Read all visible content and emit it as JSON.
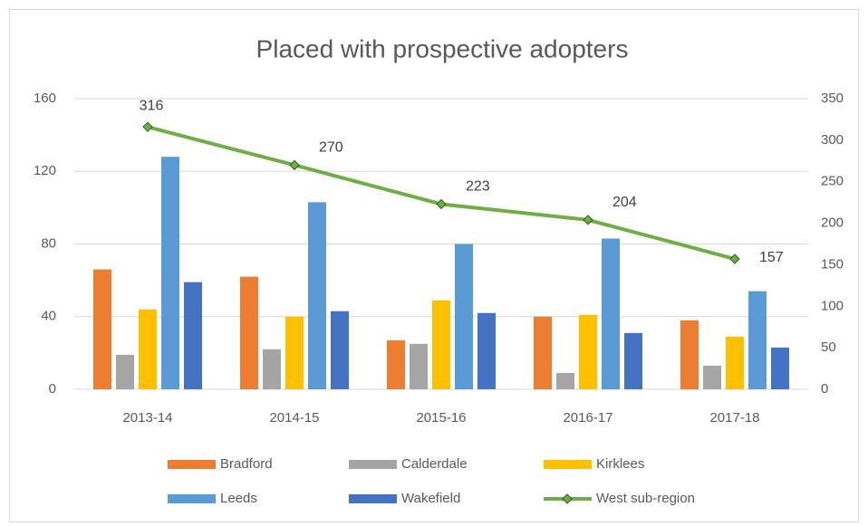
{
  "chart_data": {
    "type": "bar",
    "title": "Placed with prospective adopters",
    "categories": [
      "2013-14",
      "2014-15",
      "2015-16",
      "2016-17",
      "2017-18"
    ],
    "series": [
      {
        "name": "Bradford",
        "color": "#ed7d31",
        "values": [
          66,
          62,
          27,
          40,
          38
        ]
      },
      {
        "name": "Calderdale",
        "color": "#a5a5a5",
        "values": [
          19,
          22,
          25,
          9,
          13
        ]
      },
      {
        "name": "Kirklees",
        "color": "#ffc000",
        "values": [
          44,
          40,
          49,
          41,
          29
        ]
      },
      {
        "name": "Leeds",
        "color": "#5b9bd5",
        "values": [
          128,
          103,
          80,
          83,
          54
        ]
      },
      {
        "name": "Wakefield",
        "color": "#4472c4",
        "values": [
          59,
          43,
          42,
          31,
          23
        ]
      },
      {
        "name": "West sub-region",
        "color": "#70ad47",
        "type": "line",
        "axis": "y2",
        "values": [
          316,
          270,
          223,
          204,
          157
        ]
      }
    ],
    "ylim": [
      0,
      160
    ],
    "yticks": [
      0,
      40,
      80,
      120,
      160
    ],
    "y2lim": [
      0,
      350
    ],
    "y2ticks": [
      0,
      50,
      100,
      150,
      200,
      250,
      300,
      350
    ],
    "grid": true
  }
}
